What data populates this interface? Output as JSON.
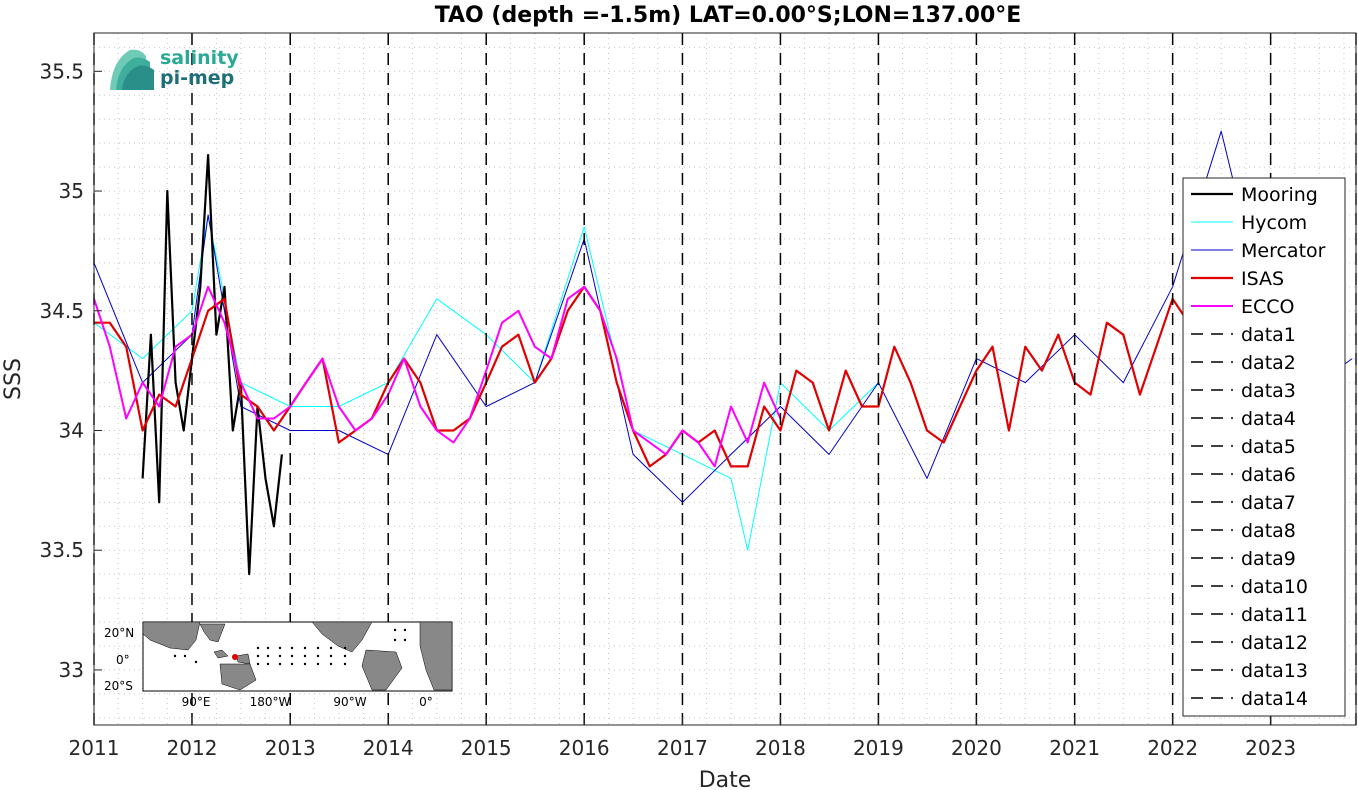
{
  "chart_data": {
    "type": "line",
    "title": "TAO (depth =-1.5m) LAT=0.00°S;LON=137.00°E",
    "xlabel": "Date",
    "ylabel": "SSS",
    "xlim": [
      "2011-01-01",
      "2023-11-15"
    ],
    "ylim": [
      32.77,
      35.66
    ],
    "x_ticks": [
      "2011",
      "2012",
      "2013",
      "2014",
      "2015",
      "2016",
      "2017",
      "2018",
      "2019",
      "2020",
      "2021",
      "2022",
      "2023"
    ],
    "y_ticks": [
      "33",
      "33.5",
      "34",
      "34.5",
      "35",
      "35.5"
    ],
    "grid": "minor dotted",
    "legend_location": "right",
    "colors": {
      "Mooring": "#000000",
      "Hycom": "#00ffff",
      "Mercator": "#0000cc",
      "ISAS": "#e00000",
      "ECCO": "#ff00ff",
      "data": "#000000"
    },
    "series": [
      {
        "name": "Mooring",
        "x": [
          "2011-07",
          "2011-08",
          "2011-09",
          "2011-10",
          "2011-11",
          "2011-12",
          "2012-01",
          "2012-02",
          "2012-03",
          "2012-04",
          "2012-05",
          "2012-06",
          "2012-07",
          "2012-08",
          "2012-09",
          "2012-10",
          "2012-11",
          "2012-12"
        ],
        "y": [
          33.8,
          34.4,
          33.7,
          35.0,
          34.2,
          34.0,
          34.3,
          34.6,
          35.15,
          34.4,
          34.6,
          34.0,
          34.2,
          33.4,
          34.1,
          33.8,
          33.6,
          33.9
        ]
      },
      {
        "name": "Hycom",
        "x": [
          "2011-01",
          "2011-07",
          "2012-01",
          "2012-03",
          "2012-07",
          "2013-01",
          "2013-07",
          "2014-01",
          "2014-07",
          "2015-01",
          "2015-07",
          "2016-01",
          "2016-07",
          "2017-01",
          "2017-07",
          "2017-09",
          "2018-01",
          "2018-07",
          "2019-01"
        ],
        "y": [
          34.45,
          34.3,
          34.5,
          34.9,
          34.2,
          34.1,
          34.1,
          34.2,
          34.55,
          34.4,
          34.2,
          34.85,
          34.0,
          33.9,
          33.8,
          33.5,
          34.2,
          34.0,
          34.2
        ]
      },
      {
        "name": "Mercator",
        "x": [
          "2011-01",
          "2011-07",
          "2012-01",
          "2012-03",
          "2012-07",
          "2013-01",
          "2013-07",
          "2014-01",
          "2014-07",
          "2015-01",
          "2015-07",
          "2016-01",
          "2016-07",
          "2017-01",
          "2017-07",
          "2018-01",
          "2018-07",
          "2019-01",
          "2019-07",
          "2020-01",
          "2020-07",
          "2021-01",
          "2021-07",
          "2022-01",
          "2022-07",
          "2023-01",
          "2023-07",
          "2023-11"
        ],
        "y": [
          34.7,
          34.2,
          34.4,
          34.9,
          34.1,
          34.0,
          34.0,
          33.9,
          34.4,
          34.1,
          34.2,
          34.8,
          33.9,
          33.7,
          33.9,
          34.1,
          33.9,
          34.2,
          33.8,
          34.3,
          34.2,
          34.4,
          34.2,
          34.6,
          35.25,
          34.4,
          34.2,
          34.3
        ]
      },
      {
        "name": "ISAS",
        "x": [
          "2011-01",
          "2011-03",
          "2011-05",
          "2011-07",
          "2011-09",
          "2011-11",
          "2012-01",
          "2012-03",
          "2012-05",
          "2012-07",
          "2012-09",
          "2012-11",
          "2013-01",
          "2013-03",
          "2013-05",
          "2013-07",
          "2013-09",
          "2013-11",
          "2014-01",
          "2014-03",
          "2014-05",
          "2014-07",
          "2014-09",
          "2014-11",
          "2015-01",
          "2015-03",
          "2015-05",
          "2015-07",
          "2015-09",
          "2015-11",
          "2016-01",
          "2016-03",
          "2016-05",
          "2016-07",
          "2016-09",
          "2016-11",
          "2017-01",
          "2017-03",
          "2017-05",
          "2017-07",
          "2017-09",
          "2017-11",
          "2018-01",
          "2018-03",
          "2018-05",
          "2018-07",
          "2018-09",
          "2018-11",
          "2019-01",
          "2019-03",
          "2019-05",
          "2019-07",
          "2019-09",
          "2019-11",
          "2020-01",
          "2020-03",
          "2020-05",
          "2020-07",
          "2020-09",
          "2020-11",
          "2021-01",
          "2021-03",
          "2021-05",
          "2021-07",
          "2021-09",
          "2021-11",
          "2022-01",
          "2022-03"
        ],
        "y": [
          34.45,
          34.45,
          34.35,
          34.0,
          34.15,
          34.1,
          34.3,
          34.5,
          34.55,
          34.15,
          34.1,
          34.0,
          34.1,
          34.2,
          34.3,
          33.95,
          34.0,
          34.05,
          34.2,
          34.3,
          34.2,
          34.0,
          34.0,
          34.05,
          34.2,
          34.35,
          34.4,
          34.2,
          34.3,
          34.5,
          34.6,
          34.5,
          34.2,
          34.0,
          33.85,
          33.9,
          34.0,
          33.95,
          34.0,
          33.85,
          33.85,
          34.1,
          34.0,
          34.25,
          34.2,
          34.0,
          34.25,
          34.1,
          34.1,
          34.35,
          34.2,
          34.0,
          33.95,
          34.1,
          34.25,
          34.35,
          34.0,
          34.35,
          34.25,
          34.4,
          34.2,
          34.15,
          34.45,
          34.4,
          34.15,
          34.35,
          34.55,
          34.45
        ]
      },
      {
        "name": "ECCO",
        "x": [
          "2011-01",
          "2011-03",
          "2011-05",
          "2011-07",
          "2011-09",
          "2011-11",
          "2012-01",
          "2012-03",
          "2012-05",
          "2012-07",
          "2012-09",
          "2012-11",
          "2013-01",
          "2013-03",
          "2013-05",
          "2013-07",
          "2013-09",
          "2013-11",
          "2014-01",
          "2014-03",
          "2014-05",
          "2014-07",
          "2014-09",
          "2014-11",
          "2015-01",
          "2015-03",
          "2015-05",
          "2015-07",
          "2015-09",
          "2015-11",
          "2016-01",
          "2016-03",
          "2016-05",
          "2016-07",
          "2016-09",
          "2016-11",
          "2017-01",
          "2017-03",
          "2017-05",
          "2017-07",
          "2017-09",
          "2017-11",
          "2018-01"
        ],
        "y": [
          34.55,
          34.35,
          34.05,
          34.2,
          34.1,
          34.35,
          34.4,
          34.6,
          34.45,
          34.2,
          34.05,
          34.05,
          34.1,
          34.2,
          34.3,
          34.1,
          34.0,
          34.05,
          34.15,
          34.3,
          34.1,
          34.0,
          33.95,
          34.05,
          34.25,
          34.45,
          34.5,
          34.35,
          34.3,
          34.55,
          34.6,
          34.5,
          34.3,
          34.0,
          33.95,
          33.9,
          34.0,
          33.95,
          33.85,
          34.1,
          33.95,
          34.2,
          34.05
        ]
      },
      {
        "name": "data1",
        "x": [
          "2011-01-01",
          "2011-01-01"
        ],
        "y": [
          32.77,
          35.66
        ]
      },
      {
        "name": "data2",
        "x": [
          "2012-01-01",
          "2012-01-01"
        ],
        "y": [
          32.77,
          35.66
        ]
      },
      {
        "name": "data3",
        "x": [
          "2013-01-01",
          "2013-01-01"
        ],
        "y": [
          32.77,
          35.66
        ]
      },
      {
        "name": "data4",
        "x": [
          "2014-01-01",
          "2014-01-01"
        ],
        "y": [
          32.77,
          35.66
        ]
      },
      {
        "name": "data5",
        "x": [
          "2015-01-01",
          "2015-01-01"
        ],
        "y": [
          32.77,
          35.66
        ]
      },
      {
        "name": "data6",
        "x": [
          "2016-01-01",
          "2016-01-01"
        ],
        "y": [
          32.77,
          35.66
        ]
      },
      {
        "name": "data7",
        "x": [
          "2017-01-01",
          "2017-01-01"
        ],
        "y": [
          32.77,
          35.66
        ]
      },
      {
        "name": "data8",
        "x": [
          "2018-01-01",
          "2018-01-01"
        ],
        "y": [
          32.77,
          35.66
        ]
      },
      {
        "name": "data9",
        "x": [
          "2019-01-01",
          "2019-01-01"
        ],
        "y": [
          32.77,
          35.66
        ]
      },
      {
        "name": "data10",
        "x": [
          "2020-01-01",
          "2020-01-01"
        ],
        "y": [
          32.77,
          35.66
        ]
      },
      {
        "name": "data11",
        "x": [
          "2021-01-01",
          "2021-01-01"
        ],
        "y": [
          32.77,
          35.66
        ]
      },
      {
        "name": "data12",
        "x": [
          "2022-01-01",
          "2022-01-01"
        ],
        "y": [
          32.77,
          35.66
        ]
      },
      {
        "name": "data13",
        "x": [
          "2023-01-01",
          "2023-01-01"
        ],
        "y": [
          32.77,
          35.66
        ]
      },
      {
        "name": "data14",
        "x": [
          "2023-11-15",
          "2023-11-15"
        ],
        "y": [
          32.77,
          35.66
        ]
      }
    ]
  },
  "logo": {
    "line1": "salinity",
    "line2": "pi-mep"
  },
  "inset_map": {
    "y_ticks": [
      "20°N",
      "0°",
      "20°S"
    ],
    "x_ticks": [
      "90°E",
      "180°W",
      "90°W",
      "0°"
    ]
  }
}
